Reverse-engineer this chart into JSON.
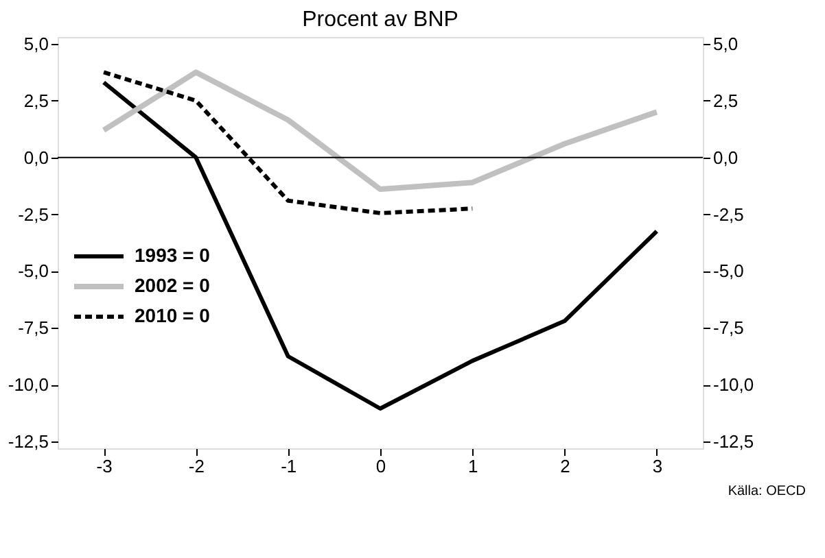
{
  "chart_data": {
    "type": "line",
    "subtitle": "Procent av BNP",
    "x": [
      -3,
      -2,
      -1,
      0,
      1,
      2,
      3
    ],
    "series": [
      {
        "name": "1993 = 0",
        "color": "#000000",
        "line_style": "solid",
        "values": [
          3.3,
          0.0,
          -8.75,
          -11.05,
          -8.95,
          -7.2,
          -3.25
        ]
      },
      {
        "name": "2002 = 0",
        "color": "#c0c0c0",
        "line_style": "solid",
        "values": [
          1.2,
          3.75,
          1.65,
          -1.4,
          -1.1,
          0.6,
          2.0
        ]
      },
      {
        "name": "2010 = 0",
        "color": "#000000",
        "line_style": "dashed",
        "values": [
          3.75,
          2.5,
          -1.9,
          -2.45,
          -2.25,
          null,
          null
        ]
      }
    ],
    "xlim": [
      -3.5,
      3.5
    ],
    "xticks": [
      -3,
      -2,
      -1,
      0,
      1,
      2,
      3
    ],
    "ylim": [
      -12.8,
      5.3
    ],
    "yticks": [
      {
        "value": 5,
        "label": "5,0"
      },
      {
        "value": 2.5,
        "label": "2,5"
      },
      {
        "value": 0,
        "label": "0,0"
      },
      {
        "value": -2.5,
        "label": "-2,5"
      },
      {
        "value": -5,
        "label": "-5,0"
      },
      {
        "value": -7.5,
        "label": "-7,5"
      },
      {
        "value": -10,
        "label": "-10,0"
      },
      {
        "value": -12.5,
        "label": "-12,5"
      }
    ],
    "y2lim": [
      -12.8,
      5.3
    ],
    "y2ticks": [
      {
        "value": 5,
        "label": "5,0"
      },
      {
        "value": 2.5,
        "label": "2,5"
      },
      {
        "value": 0,
        "label": "0,0"
      },
      {
        "value": -2.5,
        "label": "-2,5"
      },
      {
        "value": -5,
        "label": "-5,0"
      },
      {
        "value": -7.5,
        "label": "-7,5"
      },
      {
        "value": -10,
        "label": "-10,0"
      },
      {
        "value": -12.5,
        "label": "-12,5"
      }
    ],
    "ref_lines": [
      {
        "axis": "y",
        "value": 0,
        "color": "#000000"
      }
    ],
    "annotations": [
      "Källa: OECD"
    ],
    "legend": "left",
    "grid": false,
    "marker": "none"
  }
}
